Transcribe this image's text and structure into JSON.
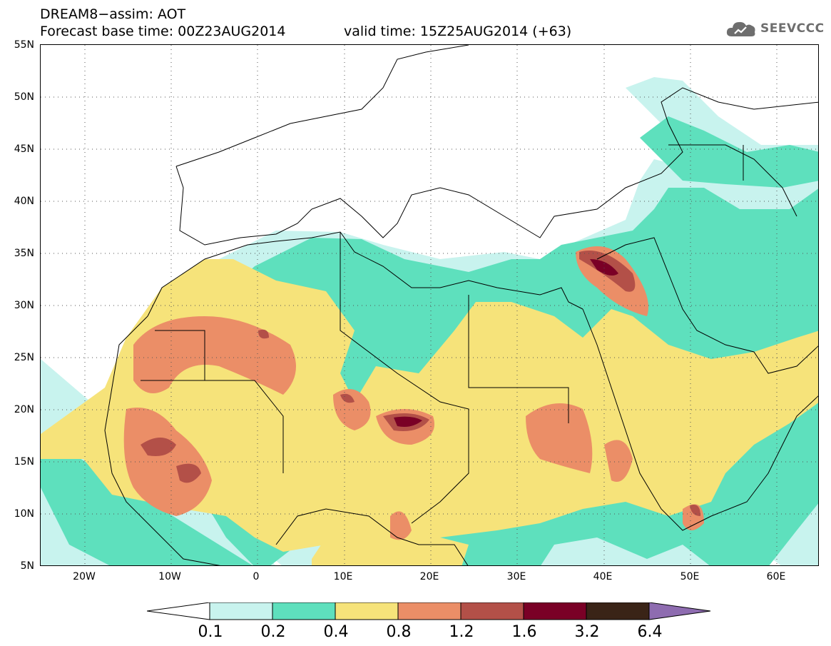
{
  "title": {
    "line1": "DREAM8−assim: AOT",
    "line2": "Forecast base time: 00Z23AUG2014",
    "valid": "valid time: 15Z25AUG2014 (+63)"
  },
  "logo": {
    "text": "SEEVCCC",
    "icon": "cloud-icon"
  },
  "map": {
    "lat_labels": [
      "55N",
      "50N",
      "45N",
      "40N",
      "35N",
      "30N",
      "25N",
      "20N",
      "15N",
      "10N",
      "5N"
    ],
    "lon_labels": [
      "20W",
      "10W",
      "0",
      "10E",
      "20E",
      "30E",
      "40E",
      "50E",
      "60E"
    ],
    "lat_range": [
      5,
      55
    ],
    "lon_range": [
      -25,
      65
    ],
    "gridlines": "dotted",
    "colors": {
      "c01": "#c8f3ee",
      "c02": "#5ee0bd",
      "c04": "#f6e37a",
      "c08": "#eb8e67",
      "c12": "#b35048",
      "c16": "#7a0026",
      "c32": "#3a2417",
      "c64": "#8e6cb0"
    }
  },
  "colorbar": {
    "labels": [
      "0.1",
      "0.2",
      "0.4",
      "0.8",
      "1.2",
      "1.6",
      "3.2",
      "6.4"
    ],
    "colors": [
      "#c8f3ee",
      "#5ee0bd",
      "#f6e37a",
      "#eb8e67",
      "#b35048",
      "#7a0026",
      "#3a2417"
    ],
    "under_color": "#ffffff",
    "over_color": "#8e6cb0"
  }
}
